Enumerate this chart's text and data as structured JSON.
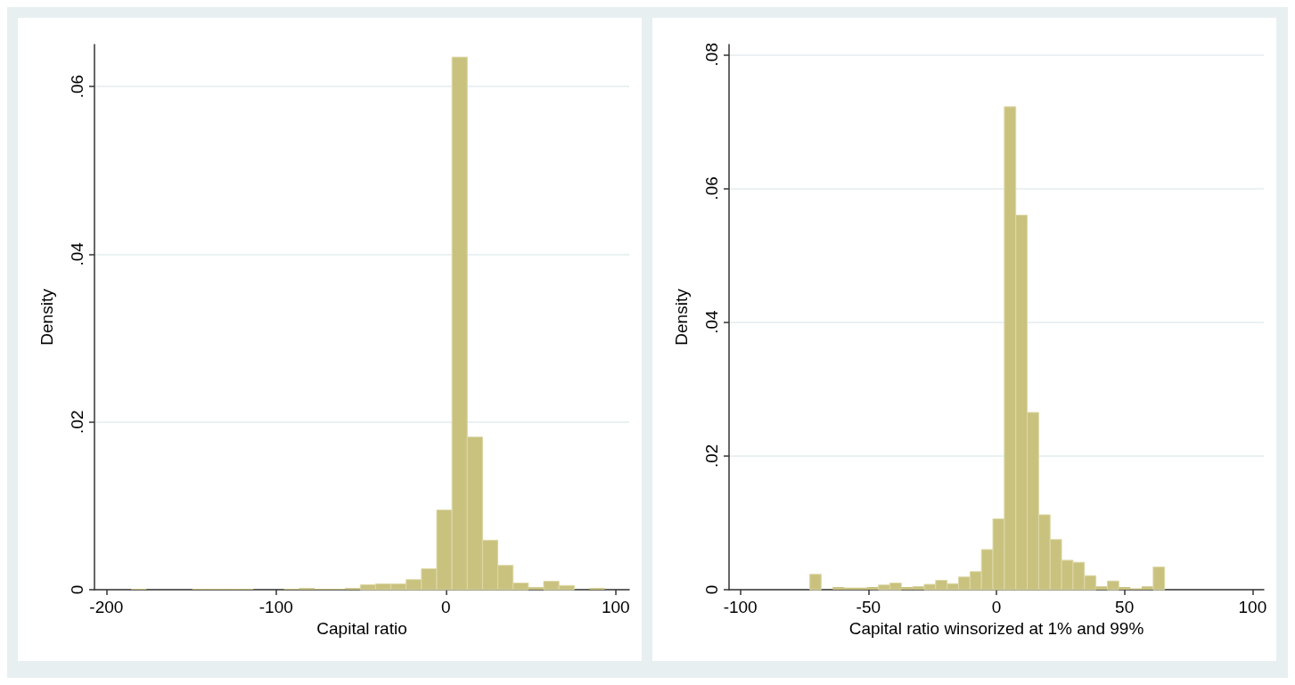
{
  "chart_data": [
    {
      "type": "histogram",
      "xlabel": "Capital ratio",
      "ylabel": "Density",
      "color": "#c9c27f",
      "grid": "y",
      "bins": [
        -185.4,
        -176.4,
        -167.4,
        -158.4,
        -149.4,
        -140.4,
        -131.4,
        -122.4,
        -113.4,
        -104.4,
        -95.4,
        -86.4,
        -77.4,
        -68.4,
        -59.4,
        -50.4,
        -41.4,
        -32.4,
        -23.4,
        -14.4,
        -5.4,
        3.6,
        12.6,
        21.6,
        30.6,
        39.6,
        48.6,
        57.6,
        66.6,
        75.6,
        84.6,
        93.6
      ],
      "values": [
        0.0001,
        0,
        0,
        0,
        0.0001,
        0.0001,
        0.0001,
        0.0001,
        0,
        0,
        0.0001,
        0.0002,
        0.0001,
        0.0001,
        0.0002,
        0.0006,
        0.0007,
        0.0007,
        0.0012,
        0.0025,
        0.0095,
        0.0635,
        0.0182,
        0.0059,
        0.0029,
        0.0008,
        0.0003,
        0.001,
        0.0005,
        0,
        0.0002
      ],
      "xlim": [
        -207,
        108
      ],
      "xticks": [
        -200,
        -100,
        0,
        100
      ],
      "ylim": [
        0,
        0.065
      ],
      "yticks": [
        0,
        {
          "value": 0.02,
          "label": ".02"
        },
        {
          "value": 0.04,
          "label": ".04"
        },
        {
          "value": 0.06,
          "label": ".06"
        }
      ]
    },
    {
      "type": "histogram",
      "xlabel": "Capital ratio winsorized at 1% and 99%",
      "ylabel": "Density",
      "color": "#c9c27f",
      "grid": "y",
      "bins": [
        -72.9,
        -68.43,
        -63.96,
        -59.49,
        -55.02,
        -50.55,
        -46.08,
        -41.61,
        -37.14,
        -32.67,
        -28.2,
        -23.73,
        -19.26,
        -14.79,
        -10.32,
        -5.85,
        -1.38,
        3.09,
        7.56,
        12.03,
        16.5,
        20.97,
        25.44,
        29.91,
        34.38,
        38.85,
        43.32,
        47.79,
        52.26,
        56.73,
        61.2,
        65.67
      ],
      "values": [
        0.0023,
        0,
        0.0004,
        0.0003,
        0.0003,
        0.0004,
        0.0007,
        0.001,
        0.0004,
        0.0005,
        0.0008,
        0.0014,
        0.0009,
        0.0019,
        0.0027,
        0.006,
        0.0106,
        0.0722,
        0.056,
        0.0265,
        0.0112,
        0.0075,
        0.0044,
        0.0041,
        0.0021,
        0.0005,
        0.0013,
        0.0004,
        0.0002,
        0.0005,
        0.0034
      ],
      "xlim": [
        -104.4,
        104.4
      ],
      "xticks": [
        -100,
        -50,
        0,
        50,
        100
      ],
      "ylim": [
        0,
        0.0815
      ],
      "yticks": [
        0,
        {
          "value": 0.02,
          "label": ".02"
        },
        {
          "value": 0.04,
          "label": ".04"
        },
        {
          "value": 0.06,
          "label": ".06"
        },
        {
          "value": 0.08,
          "label": ".08"
        }
      ]
    }
  ]
}
